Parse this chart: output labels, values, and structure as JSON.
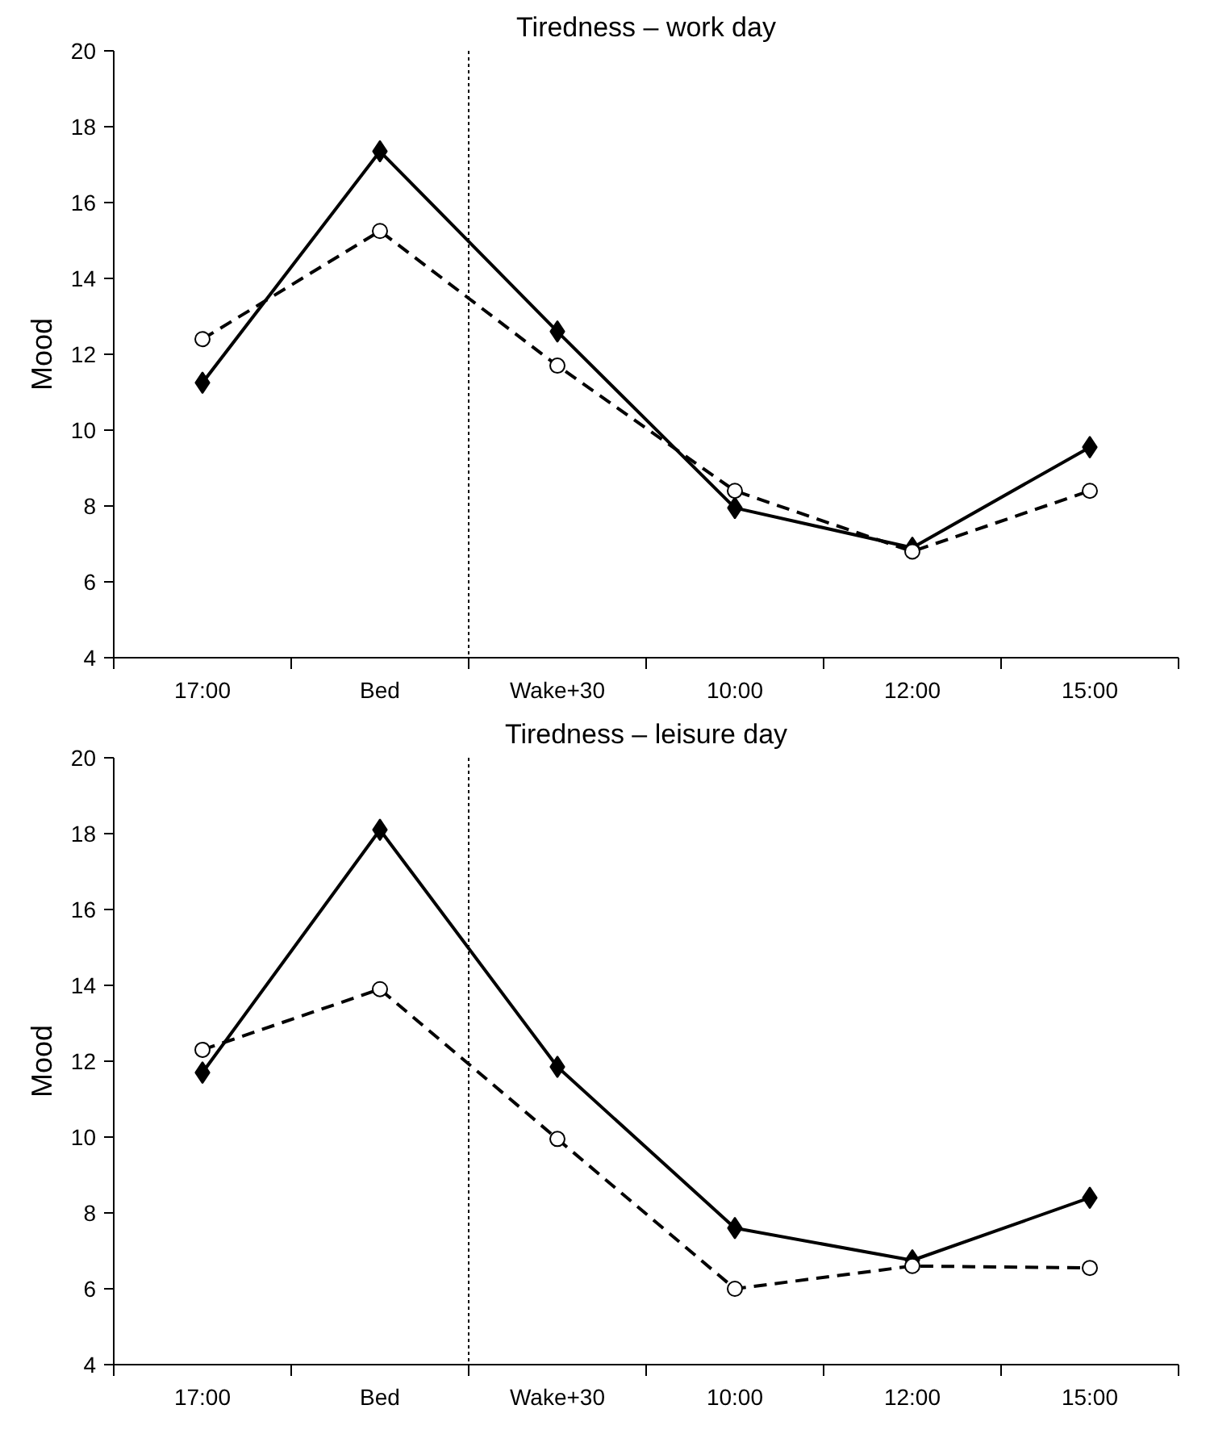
{
  "chart_data": [
    {
      "type": "line",
      "title": "Tiredness – work day",
      "ylabel": "Mood",
      "categories": [
        "17:00",
        "Bed",
        "Wake+30",
        "10:00",
        "12:00",
        "15:00"
      ],
      "ylim": [
        4,
        20
      ],
      "yticks": [
        4,
        6,
        8,
        10,
        12,
        14,
        16,
        18,
        20
      ],
      "series": [
        {
          "color": "#000000",
          "marker": "diamond",
          "line_style": "solid",
          "values": [
            11.25,
            17.35,
            12.6,
            7.95,
            6.9,
            9.55
          ]
        },
        {
          "color": "#000000",
          "marker": "circle",
          "line_style": "dashed",
          "values": [
            12.4,
            15.25,
            11.7,
            8.4,
            6.8,
            8.4
          ]
        }
      ]
    },
    {
      "type": "line",
      "title": "Tiredness – leisure day",
      "ylabel": "Mood",
      "categories": [
        "17:00",
        "Bed",
        "Wake+30",
        "10:00",
        "12:00",
        "15:00"
      ],
      "ylim": [
        4,
        20
      ],
      "yticks": [
        4,
        6,
        8,
        10,
        12,
        14,
        16,
        18,
        20
      ],
      "series": [
        {
          "color": "#000000",
          "marker": "diamond",
          "line_style": "solid",
          "values": [
            11.7,
            18.1,
            11.85,
            7.6,
            6.75,
            8.4
          ]
        },
        {
          "color": "#000000",
          "marker": "circle",
          "line_style": "dashed",
          "values": [
            12.3,
            13.9,
            9.95,
            6.0,
            6.6,
            6.55
          ]
        }
      ]
    }
  ]
}
